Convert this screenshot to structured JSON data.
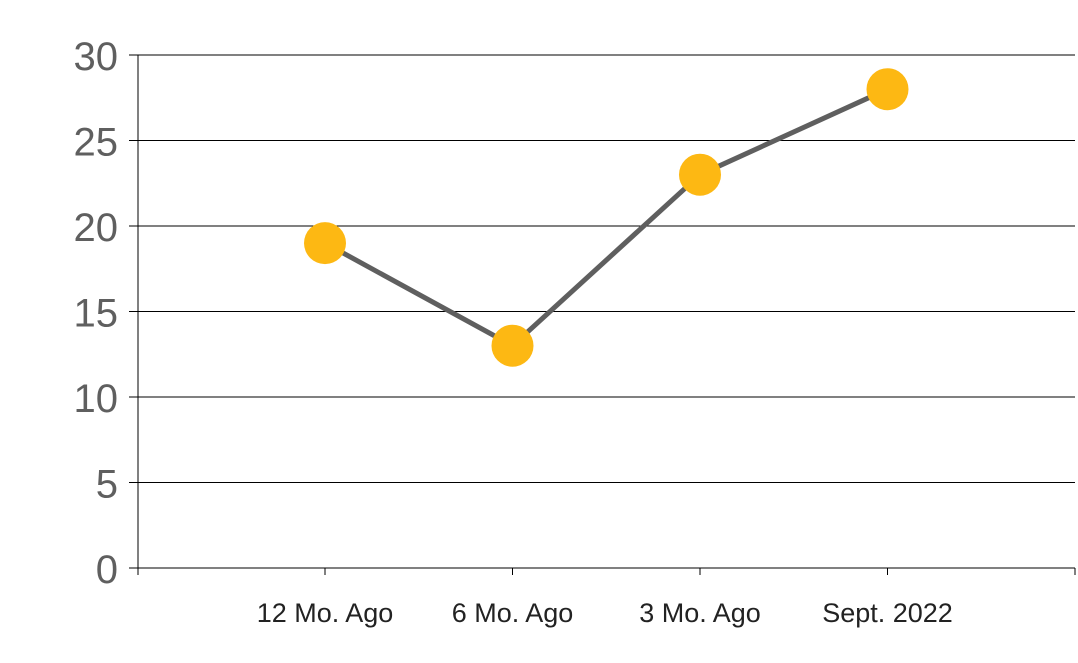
{
  "chart_data": {
    "type": "line",
    "categories": [
      "12 Mo. Ago",
      "6 Mo. Ago",
      "3 Mo. Ago",
      "Sept. 2022"
    ],
    "series": [
      {
        "values": [
          19,
          13,
          23,
          28
        ]
      }
    ],
    "ylim": [
      0,
      30
    ],
    "yticks": [
      "0",
      "5",
      "10",
      "15",
      "20",
      "25",
      "30"
    ],
    "grid": true,
    "legend": "none",
    "colors": {
      "line": "#5f5f5f",
      "marker": "#fdb813",
      "grid": "#000000",
      "axis_text": "#5f5f5f"
    }
  }
}
